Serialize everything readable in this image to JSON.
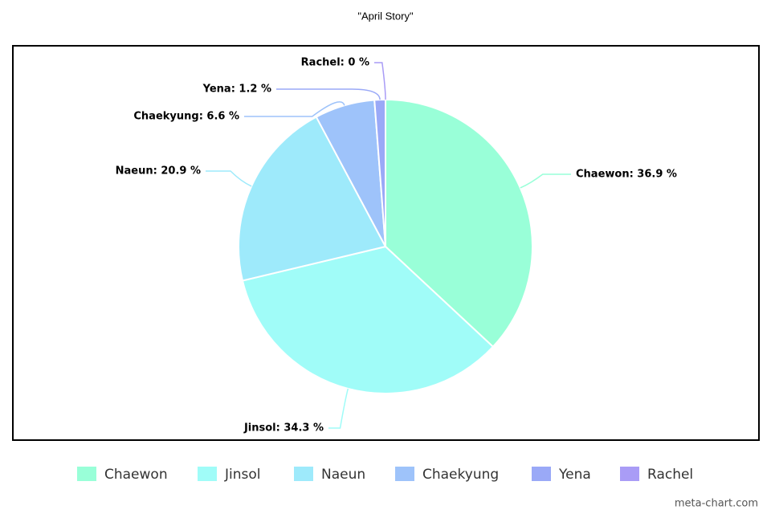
{
  "chart_data": {
    "type": "pie",
    "title": "\"April Story\"",
    "categories": [
      "Chaewon",
      "Jinsol",
      "Naeun",
      "Chaekyung",
      "Yena",
      "Rachel"
    ],
    "values": [
      36.9,
      34.3,
      20.9,
      6.6,
      1.2,
      0
    ],
    "value_labels": [
      "Chaewon: 36.9 %",
      "Jinsol: 34.3 %",
      "Naeun: 20.9 %",
      "Chaekyung: 6.6 %",
      "Yena: 1.2 %",
      "Rachel: 0 %"
    ],
    "colors": [
      "#99ffd8",
      "#a0fcf8",
      "#9eeafb",
      "#9ec3fa",
      "#9aa9f7",
      "#a99cf6"
    ],
    "legend": "bottom"
  },
  "credit": "meta-chart.com"
}
